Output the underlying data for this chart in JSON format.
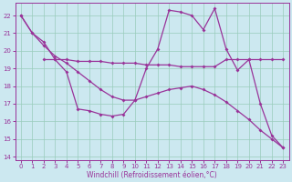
{
  "xlabel": "Windchill (Refroidissement éolien,°C)",
  "bg_color": "#cce8f0",
  "line_color": "#993399",
  "grid_color": "#99ccbb",
  "xlim": [
    -0.5,
    23.5
  ],
  "ylim": [
    13.8,
    22.7
  ],
  "yticks": [
    14,
    15,
    16,
    17,
    18,
    19,
    20,
    21,
    22
  ],
  "xticks": [
    0,
    1,
    2,
    3,
    4,
    5,
    6,
    7,
    8,
    9,
    10,
    11,
    12,
    13,
    14,
    15,
    16,
    17,
    18,
    19,
    20,
    21,
    22,
    23
  ],
  "line1_x": [
    0,
    1,
    2,
    3,
    4,
    5,
    6,
    7,
    8,
    9,
    10,
    11,
    12,
    13,
    14,
    15,
    16,
    17,
    18,
    19,
    20,
    21,
    22,
    23
  ],
  "line1_y": [
    22.0,
    21.0,
    20.5,
    19.5,
    18.8,
    16.7,
    16.6,
    16.4,
    16.3,
    16.4,
    17.2,
    19.0,
    20.1,
    22.3,
    22.2,
    22.0,
    21.2,
    22.4,
    20.1,
    18.9,
    19.5,
    17.0,
    15.2,
    14.5
  ],
  "line2_x": [
    2,
    3,
    4,
    5,
    6,
    7,
    8,
    9,
    10,
    11,
    12,
    13,
    14,
    15,
    16,
    17,
    18,
    19,
    20,
    21,
    22,
    23
  ],
  "line2_y": [
    19.5,
    19.5,
    19.5,
    19.4,
    19.4,
    19.4,
    19.3,
    19.3,
    19.3,
    19.2,
    19.2,
    19.2,
    19.1,
    19.1,
    19.1,
    19.1,
    19.5,
    19.5,
    19.5,
    19.5,
    19.5,
    19.5
  ],
  "line3_x": [
    0,
    1,
    2,
    3,
    4,
    5,
    6,
    7,
    8,
    9,
    10,
    11,
    12,
    13,
    14,
    15,
    16,
    17,
    18,
    19,
    20,
    21,
    22,
    23
  ],
  "line3_y": [
    22.0,
    21.0,
    20.3,
    19.7,
    19.3,
    18.8,
    18.3,
    17.8,
    17.4,
    17.2,
    17.2,
    17.4,
    17.6,
    17.8,
    17.9,
    18.0,
    17.8,
    17.5,
    17.1,
    16.6,
    16.1,
    15.5,
    15.0,
    14.5
  ]
}
